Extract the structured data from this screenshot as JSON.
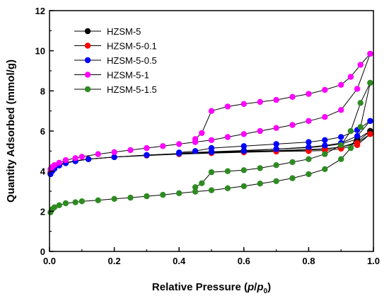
{
  "chart_data": {
    "type": "line",
    "xlabel": "Relative Pressure (p/p0)",
    "ylabel": "Quantity Adsorbed (mmol/g)",
    "xlim": [
      0.0,
      1.0
    ],
    "ylim": [
      0,
      12
    ],
    "xticks": [
      "0.0",
      "0.2",
      "0.4",
      "0.6",
      "0.8",
      "1.0"
    ],
    "yticks": [
      "0",
      "2",
      "4",
      "6",
      "8",
      "10",
      "12"
    ],
    "legend_position": "top-left",
    "grid": false,
    "series": [
      {
        "name": "HZSM-5",
        "color": "#000000",
        "adsorption": [
          [
            0.003,
            3.9
          ],
          [
            0.008,
            4.05
          ],
          [
            0.015,
            4.15
          ],
          [
            0.03,
            4.3
          ],
          [
            0.05,
            4.4
          ],
          [
            0.08,
            4.5
          ],
          [
            0.12,
            4.6
          ],
          [
            0.2,
            4.7
          ],
          [
            0.3,
            4.8
          ],
          [
            0.4,
            4.87
          ],
          [
            0.5,
            4.93
          ],
          [
            0.6,
            4.98
          ],
          [
            0.7,
            5.03
          ],
          [
            0.8,
            5.08
          ],
          [
            0.85,
            5.12
          ],
          [
            0.9,
            5.2
          ],
          [
            0.95,
            5.45
          ],
          [
            0.99,
            6.0
          ]
        ],
        "desorption": [
          [
            0.99,
            6.0
          ],
          [
            0.95,
            5.6
          ],
          [
            0.9,
            5.35
          ],
          [
            0.85,
            5.25
          ],
          [
            0.8,
            5.17
          ],
          [
            0.7,
            5.1
          ],
          [
            0.6,
            5.03
          ],
          [
            0.5,
            4.97
          ],
          [
            0.4,
            4.9
          ]
        ]
      },
      {
        "name": "HZSM-5-0.1",
        "color": "#ff0000",
        "adsorption": [
          [
            0.003,
            3.95
          ],
          [
            0.008,
            4.08
          ],
          [
            0.015,
            4.18
          ],
          [
            0.03,
            4.32
          ],
          [
            0.05,
            4.42
          ],
          [
            0.08,
            4.52
          ],
          [
            0.12,
            4.6
          ],
          [
            0.2,
            4.7
          ],
          [
            0.3,
            4.78
          ],
          [
            0.4,
            4.85
          ],
          [
            0.5,
            4.9
          ],
          [
            0.6,
            4.94
          ],
          [
            0.7,
            4.98
          ],
          [
            0.8,
            5.0
          ],
          [
            0.85,
            5.03
          ],
          [
            0.9,
            5.12
          ],
          [
            0.95,
            5.3
          ],
          [
            0.99,
            5.85
          ]
        ],
        "desorption": [
          [
            0.99,
            5.85
          ],
          [
            0.95,
            5.4
          ],
          [
            0.9,
            5.2
          ],
          [
            0.85,
            5.1
          ],
          [
            0.8,
            5.05
          ],
          [
            0.7,
            5.0
          ],
          [
            0.6,
            4.96
          ],
          [
            0.5,
            4.92
          ],
          [
            0.4,
            4.87
          ]
        ]
      },
      {
        "name": "HZSM-5-0.5",
        "color": "#0000ff",
        "adsorption": [
          [
            0.003,
            3.85
          ],
          [
            0.008,
            4.0
          ],
          [
            0.015,
            4.12
          ],
          [
            0.03,
            4.28
          ],
          [
            0.05,
            4.4
          ],
          [
            0.08,
            4.5
          ],
          [
            0.12,
            4.6
          ],
          [
            0.2,
            4.7
          ],
          [
            0.3,
            4.8
          ],
          [
            0.4,
            4.88
          ],
          [
            0.5,
            4.95
          ],
          [
            0.6,
            5.0
          ],
          [
            0.7,
            5.1
          ],
          [
            0.8,
            5.2
          ],
          [
            0.85,
            5.28
          ],
          [
            0.9,
            5.4
          ],
          [
            0.95,
            5.75
          ],
          [
            0.99,
            6.5
          ]
        ],
        "desorption": [
          [
            0.99,
            6.5
          ],
          [
            0.95,
            6.05
          ],
          [
            0.9,
            5.7
          ],
          [
            0.85,
            5.55
          ],
          [
            0.8,
            5.45
          ],
          [
            0.7,
            5.35
          ],
          [
            0.6,
            5.25
          ],
          [
            0.5,
            5.15
          ],
          [
            0.45,
            5.0
          ],
          [
            0.4,
            4.93
          ]
        ]
      },
      {
        "name": "HZSM-5-1",
        "color": "#ff00ff",
        "adsorption": [
          [
            0.003,
            4.1
          ],
          [
            0.008,
            4.2
          ],
          [
            0.015,
            4.3
          ],
          [
            0.03,
            4.42
          ],
          [
            0.05,
            4.55
          ],
          [
            0.08,
            4.65
          ],
          [
            0.1,
            4.72
          ],
          [
            0.15,
            4.85
          ],
          [
            0.2,
            4.95
          ],
          [
            0.25,
            5.05
          ],
          [
            0.3,
            5.15
          ],
          [
            0.35,
            5.25
          ],
          [
            0.4,
            5.35
          ],
          [
            0.45,
            5.45
          ],
          [
            0.5,
            5.55
          ],
          [
            0.55,
            5.7
          ],
          [
            0.6,
            5.85
          ],
          [
            0.65,
            6.0
          ],
          [
            0.7,
            6.15
          ],
          [
            0.75,
            6.3
          ],
          [
            0.8,
            6.5
          ],
          [
            0.85,
            6.7
          ],
          [
            0.9,
            7.05
          ],
          [
            0.95,
            8.1
          ],
          [
            0.99,
            9.85
          ]
        ],
        "desorption": [
          [
            0.99,
            9.85
          ],
          [
            0.96,
            9.3
          ],
          [
            0.93,
            8.7
          ],
          [
            0.9,
            8.3
          ],
          [
            0.85,
            8.05
          ],
          [
            0.8,
            7.85
          ],
          [
            0.75,
            7.7
          ],
          [
            0.7,
            7.55
          ],
          [
            0.65,
            7.45
          ],
          [
            0.6,
            7.35
          ],
          [
            0.55,
            7.22
          ],
          [
            0.5,
            7.0
          ],
          [
            0.47,
            5.9
          ],
          [
            0.45,
            5.6
          ]
        ]
      },
      {
        "name": "HZSM-5-1.5",
        "color": "#2e8b22",
        "adsorption": [
          [
            0.003,
            1.95
          ],
          [
            0.008,
            2.1
          ],
          [
            0.015,
            2.2
          ],
          [
            0.03,
            2.3
          ],
          [
            0.05,
            2.4
          ],
          [
            0.08,
            2.45
          ],
          [
            0.1,
            2.5
          ],
          [
            0.15,
            2.55
          ],
          [
            0.2,
            2.62
          ],
          [
            0.25,
            2.68
          ],
          [
            0.3,
            2.75
          ],
          [
            0.35,
            2.82
          ],
          [
            0.4,
            2.9
          ],
          [
            0.45,
            2.98
          ],
          [
            0.5,
            3.05
          ],
          [
            0.55,
            3.15
          ],
          [
            0.6,
            3.25
          ],
          [
            0.65,
            3.38
          ],
          [
            0.7,
            3.5
          ],
          [
            0.75,
            3.65
          ],
          [
            0.8,
            3.85
          ],
          [
            0.85,
            4.1
          ],
          [
            0.9,
            4.6
          ],
          [
            0.93,
            5.15
          ],
          [
            0.96,
            6.2
          ],
          [
            0.99,
            8.4
          ]
        ],
        "desorption": [
          [
            0.99,
            8.4
          ],
          [
            0.96,
            7.4
          ],
          [
            0.93,
            6.0
          ],
          [
            0.9,
            5.3
          ],
          [
            0.85,
            4.85
          ],
          [
            0.8,
            4.6
          ],
          [
            0.75,
            4.45
          ],
          [
            0.7,
            4.3
          ],
          [
            0.65,
            4.15
          ],
          [
            0.6,
            4.05
          ],
          [
            0.55,
            4.0
          ],
          [
            0.5,
            3.95
          ],
          [
            0.47,
            3.4
          ],
          [
            0.45,
            3.2
          ]
        ]
      }
    ]
  }
}
